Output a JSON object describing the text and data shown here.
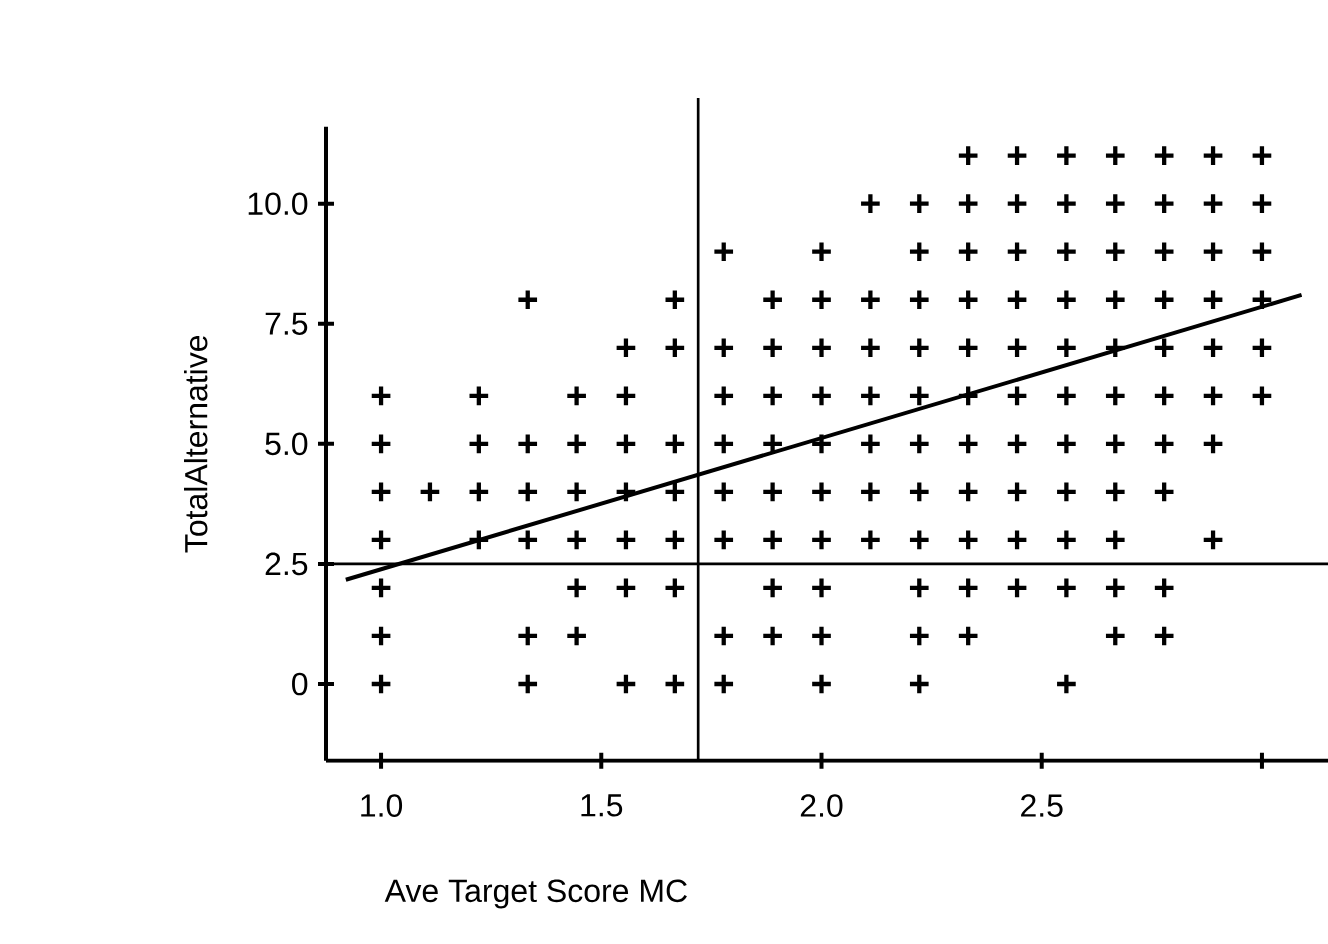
{
  "chart_data": {
    "type": "scatter",
    "xlabel": "Ave Target Score MC",
    "ylabel": "TotalAlternative",
    "xlim": [
      0.875,
      3.15
    ],
    "ylim": [
      -1.6,
      11.6
    ],
    "xticks": [
      {
        "value": 1.0,
        "label": "1.0"
      },
      {
        "value": 1.5,
        "label": "1.5"
      },
      {
        "value": 2.0,
        "label": "2.0"
      },
      {
        "value": 2.5,
        "label": "2.5"
      },
      {
        "value": 3.0,
        "label": null
      }
    ],
    "yticks": [
      {
        "value": 0,
        "label": "0"
      },
      {
        "value": 2.5,
        "label": "2.5"
      },
      {
        "value": 5.0,
        "label": "5.0"
      },
      {
        "value": 7.5,
        "label": "7.5"
      },
      {
        "value": 10.0,
        "label": "10.0"
      }
    ],
    "grid": false,
    "ref_lines": [
      {
        "axis": "x",
        "value": 1.72,
        "color": "#000000"
      },
      {
        "axis": "y",
        "value": 2.5,
        "color": "#000000"
      }
    ],
    "series": [
      {
        "marker": "cross",
        "color": "#000000",
        "x": [
          1,
          1.333,
          1.556,
          1.667,
          1.778,
          2,
          2.222,
          2.556,
          1,
          1.333,
          1.444,
          1.778,
          1.889,
          2,
          2.222,
          2.333,
          2.667,
          2.778,
          1,
          1.444,
          1.556,
          1.667,
          1.889,
          2,
          2.222,
          2.333,
          2.444,
          2.556,
          2.667,
          2.778,
          1,
          1.222,
          1.333,
          1.444,
          1.556,
          1.667,
          1.778,
          1.889,
          2,
          2.111,
          2.222,
          2.333,
          2.444,
          2.556,
          2.667,
          2.889,
          1,
          1.111,
          1.222,
          1.333,
          1.444,
          1.556,
          1.667,
          1.778,
          1.889,
          2,
          2.111,
          2.222,
          2.333,
          2.444,
          2.556,
          2.667,
          2.778,
          1,
          1.222,
          1.333,
          1.444,
          1.556,
          1.667,
          1.778,
          1.889,
          2,
          2.111,
          2.222,
          2.333,
          2.444,
          2.556,
          2.667,
          2.778,
          2.889,
          1,
          1.222,
          1.444,
          1.556,
          1.778,
          1.889,
          2,
          2.111,
          2.222,
          2.333,
          2.444,
          2.556,
          2.667,
          2.778,
          2.889,
          3,
          1.556,
          1.667,
          1.778,
          1.889,
          2,
          2.111,
          2.222,
          2.333,
          2.444,
          2.556,
          2.667,
          2.778,
          2.889,
          3,
          1.333,
          1.667,
          1.889,
          2,
          2.111,
          2.222,
          2.333,
          2.444,
          2.556,
          2.667,
          2.778,
          2.889,
          3,
          1.778,
          2,
          2.222,
          2.333,
          2.444,
          2.556,
          2.667,
          2.778,
          2.889,
          3,
          2.111,
          2.222,
          2.333,
          2.444,
          2.556,
          2.667,
          2.778,
          2.889,
          3,
          2.333,
          2.444,
          2.556,
          2.667,
          2.778,
          2.889,
          3
        ],
        "values": [
          0,
          0,
          0,
          0,
          0,
          0,
          0,
          0,
          1,
          1,
          1,
          1,
          1,
          1,
          1,
          1,
          1,
          1,
          2,
          2,
          2,
          2,
          2,
          2,
          2,
          2,
          2,
          2,
          2,
          2,
          3,
          3,
          3,
          3,
          3,
          3,
          3,
          3,
          3,
          3,
          3,
          3,
          3,
          3,
          3,
          3,
          4,
          4,
          4,
          4,
          4,
          4,
          4,
          4,
          4,
          4,
          4,
          4,
          4,
          4,
          4,
          4,
          4,
          5,
          5,
          5,
          5,
          5,
          5,
          5,
          5,
          5,
          5,
          5,
          5,
          5,
          5,
          5,
          5,
          5,
          6,
          6,
          6,
          6,
          6,
          6,
          6,
          6,
          6,
          6,
          6,
          6,
          6,
          6,
          6,
          6,
          7,
          7,
          7,
          7,
          7,
          7,
          7,
          7,
          7,
          7,
          7,
          7,
          7,
          7,
          8,
          8,
          8,
          8,
          8,
          8,
          8,
          8,
          8,
          8,
          8,
          8,
          8,
          9,
          9,
          9,
          9,
          9,
          9,
          9,
          9,
          9,
          9,
          10,
          10,
          10,
          10,
          10,
          10,
          10,
          10,
          10,
          11,
          11,
          11,
          11,
          11,
          11,
          11
        ]
      },
      {
        "type": "line",
        "color": "#000000",
        "x": [
          0.92,
          3.09
        ],
        "values": [
          2.17,
          8.1
        ]
      }
    ]
  }
}
